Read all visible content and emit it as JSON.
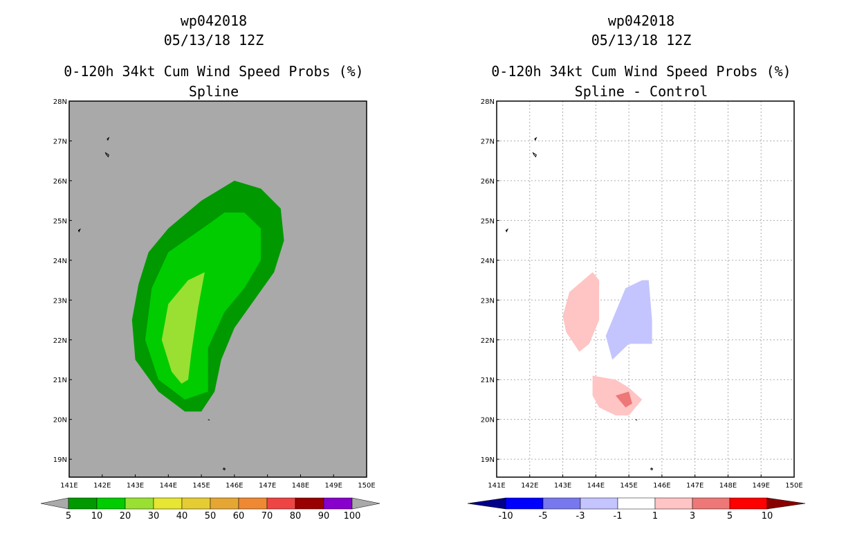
{
  "chart_data": [
    {
      "type": "contour-map",
      "title_lines": [
        "wp042018",
        "05/13/18 12Z",
        "0-120h 34kt Cum Wind Speed Probs (%)",
        "Spline"
      ],
      "x_ticks": [
        "141E",
        "142E",
        "143E",
        "144E",
        "145E",
        "146E",
        "147E",
        "148E",
        "149E",
        "150E"
      ],
      "y_ticks": [
        "19N",
        "20N",
        "21N",
        "22N",
        "23N",
        "24N",
        "25N",
        "26N",
        "27N",
        "28N"
      ],
      "xlim": [
        141,
        150
      ],
      "ylim": [
        18.55,
        28
      ],
      "background_color": "#a9a9a9",
      "colorbar": {
        "levels": [
          "5",
          "10",
          "20",
          "30",
          "40",
          "50",
          "60",
          "70",
          "80",
          "90",
          "100"
        ],
        "colors": [
          "#009900",
          "#00cc00",
          "#99e033",
          "#e6e633",
          "#e6cc33",
          "#e6a633",
          "#ee8833",
          "#ee4444",
          "#990000",
          "#8800cc"
        ],
        "end_color": "#a9a9a9"
      },
      "contours": [
        {
          "level": "5-10",
          "color": "#009900",
          "polygon": [
            [
              145.0,
              25.5
            ],
            [
              146.0,
              26.0
            ],
            [
              146.8,
              25.8
            ],
            [
              147.4,
              25.3
            ],
            [
              147.5,
              24.5
            ],
            [
              147.2,
              23.7
            ],
            [
              146.6,
              23.0
            ],
            [
              146.0,
              22.3
            ],
            [
              145.6,
              21.5
            ],
            [
              145.4,
              20.7
            ],
            [
              145.0,
              20.2
            ],
            [
              144.5,
              20.2
            ],
            [
              143.7,
              20.7
            ],
            [
              143.0,
              21.5
            ],
            [
              142.9,
              22.5
            ],
            [
              143.1,
              23.4
            ],
            [
              143.4,
              24.2
            ],
            [
              144.0,
              24.8
            ]
          ]
        },
        {
          "level": "10-20",
          "color": "#00cc00",
          "polygon": [
            [
              145.2,
              24.9
            ],
            [
              145.7,
              25.2
            ],
            [
              146.3,
              25.2
            ],
            [
              146.8,
              24.8
            ],
            [
              146.8,
              24.0
            ],
            [
              146.3,
              23.3
            ],
            [
              145.7,
              22.7
            ],
            [
              145.2,
              21.8
            ],
            [
              145.2,
              20.7
            ],
            [
              144.5,
              20.5
            ],
            [
              143.7,
              21.0
            ],
            [
              143.3,
              22.0
            ],
            [
              143.5,
              23.3
            ],
            [
              144.0,
              24.2
            ]
          ]
        },
        {
          "level": "20-30",
          "color": "#99e033",
          "polygon": [
            [
              144.6,
              23.5
            ],
            [
              145.1,
              23.7
            ],
            [
              144.9,
              22.8
            ],
            [
              144.7,
              21.7
            ],
            [
              144.6,
              21.0
            ],
            [
              144.4,
              20.9
            ],
            [
              144.1,
              21.2
            ],
            [
              143.8,
              22.0
            ],
            [
              144.0,
              22.9
            ]
          ]
        }
      ]
    },
    {
      "type": "contour-map",
      "title_lines": [
        "wp042018",
        "05/13/18 12Z",
        "0-120h 34kt Cum Wind Speed Probs (%)",
        "Spline - Control"
      ],
      "x_ticks": [
        "141E",
        "142E",
        "143E",
        "144E",
        "145E",
        "146E",
        "147E",
        "148E",
        "149E",
        "150E"
      ],
      "y_ticks": [
        "19N",
        "20N",
        "21N",
        "22N",
        "23N",
        "24N",
        "25N",
        "26N",
        "27N",
        "28N"
      ],
      "xlim": [
        141,
        150
      ],
      "ylim": [
        18.55,
        28
      ],
      "background_color": "#ffffff",
      "grid": true,
      "colorbar": {
        "levels": [
          "-10",
          "-5",
          "-3",
          "-1",
          "1",
          "3",
          "5",
          "10"
        ],
        "colors": [
          "#0000ff",
          "#7777ee",
          "#c4c4ff",
          "#ffffff",
          "#ffc4c4",
          "#ee7777",
          "#ff0000"
        ],
        "end_colors": [
          "#000088",
          "#880000"
        ]
      },
      "contours": [
        {
          "level": "1 to 3",
          "color": "#ffc4c4",
          "polygon": [
            [
              143.9,
              23.7
            ],
            [
              144.1,
              23.5
            ],
            [
              144.1,
              22.5
            ],
            [
              143.8,
              21.9
            ],
            [
              143.5,
              21.7
            ],
            [
              143.1,
              22.2
            ],
            [
              143.0,
              22.6
            ],
            [
              143.2,
              23.2
            ]
          ]
        },
        {
          "level": "-3 to -1",
          "color": "#c4c4ff",
          "polygon": [
            [
              145.4,
              23.5
            ],
            [
              145.6,
              23.5
            ],
            [
              145.7,
              22.5
            ],
            [
              145.7,
              21.9
            ],
            [
              145.0,
              21.9
            ],
            [
              144.5,
              21.5
            ],
            [
              144.3,
              22.1
            ],
            [
              144.6,
              22.7
            ],
            [
              144.9,
              23.3
            ]
          ]
        },
        {
          "level": "1 to 3",
          "color": "#ffc4c4",
          "polygon": [
            [
              143.9,
              21.1
            ],
            [
              144.6,
              21.0
            ],
            [
              145.0,
              20.8
            ],
            [
              145.4,
              20.5
            ],
            [
              145.0,
              20.1
            ],
            [
              144.6,
              20.1
            ],
            [
              144.1,
              20.3
            ],
            [
              143.9,
              20.6
            ]
          ]
        },
        {
          "level": "3 to 5",
          "color": "#ee7777",
          "polygon": [
            [
              144.6,
              20.6
            ],
            [
              145.0,
              20.7
            ],
            [
              145.1,
              20.4
            ],
            [
              144.9,
              20.3
            ]
          ]
        }
      ]
    }
  ],
  "islands": [
    [
      [
        142.15,
        27.05
      ],
      [
        142.2,
        27.08
      ],
      [
        142.17,
        27.02
      ]
    ],
    [
      [
        142.1,
        26.7
      ],
      [
        142.2,
        26.65
      ],
      [
        142.18,
        26.6
      ],
      [
        142.12,
        26.66
      ]
    ],
    [
      [
        141.28,
        24.75
      ],
      [
        141.33,
        24.78
      ],
      [
        141.3,
        24.72
      ]
    ],
    [
      [
        145.2,
        20.0
      ],
      [
        145.25,
        19.98
      ]
    ],
    [
      [
        145.68,
        18.78
      ],
      [
        145.72,
        18.76
      ],
      [
        145.7,
        18.73
      ],
      [
        145.66,
        18.75
      ]
    ]
  ]
}
